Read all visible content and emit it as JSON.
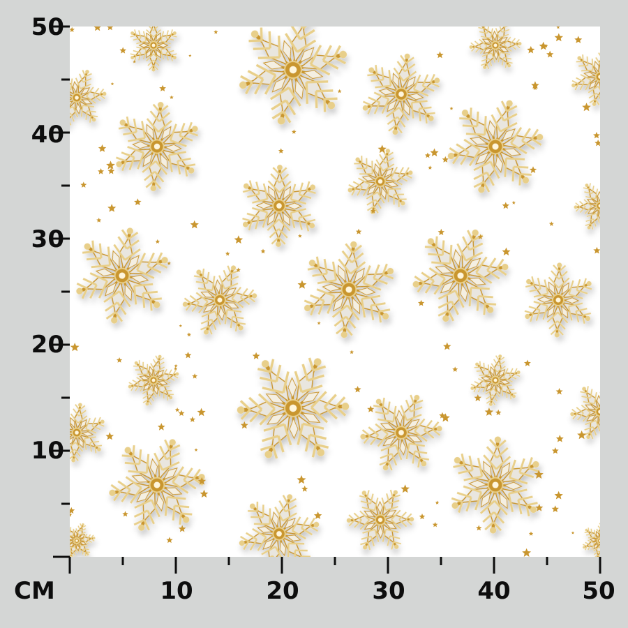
{
  "unit_label": "CM",
  "y_axis": {
    "ticks": [
      "50",
      "40",
      "30",
      "20",
      "10"
    ]
  },
  "x_axis": {
    "ticks": [
      "10",
      "20",
      "30",
      "40",
      "50"
    ]
  },
  "axis_range_cm": [
    0,
    50
  ],
  "pattern": {
    "description_colors": {
      "gold": "#c9962f",
      "light_gold": "#e8cf8a",
      "silver": "#e9e6df",
      "background": "#ffffff"
    }
  },
  "colors": {
    "page_background": "#d4d6d5",
    "axis": "#0d0d0d"
  }
}
